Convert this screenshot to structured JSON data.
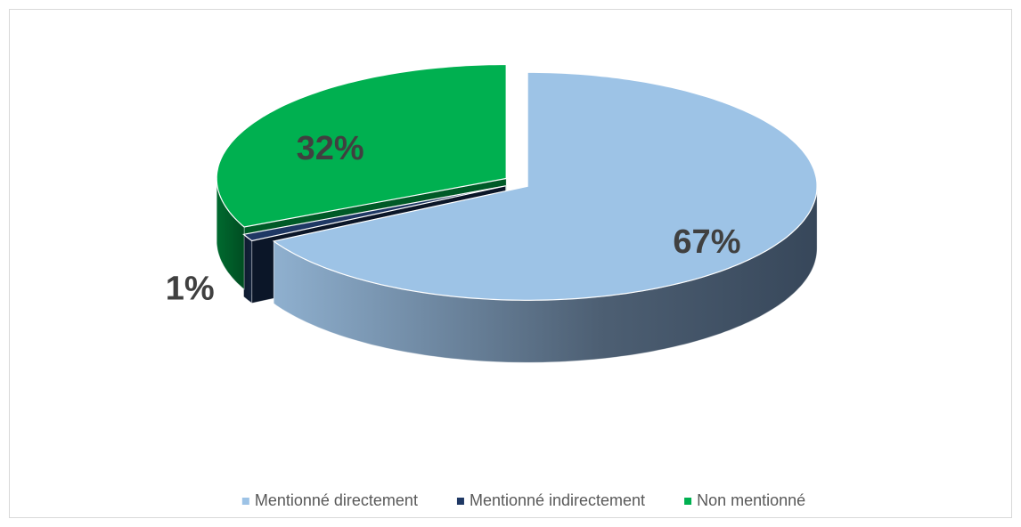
{
  "chart_data": {
    "type": "pie3d",
    "categories": [
      "Mentionné directement",
      "Mentionné indirectement",
      "Non mentionné"
    ],
    "values": [
      67,
      1,
      32
    ],
    "value_labels": [
      "67%",
      "1%",
      "32%"
    ],
    "colors": [
      "#9dc3e6",
      "#1f3864",
      "#00b050"
    ],
    "legend": "bottom"
  }
}
